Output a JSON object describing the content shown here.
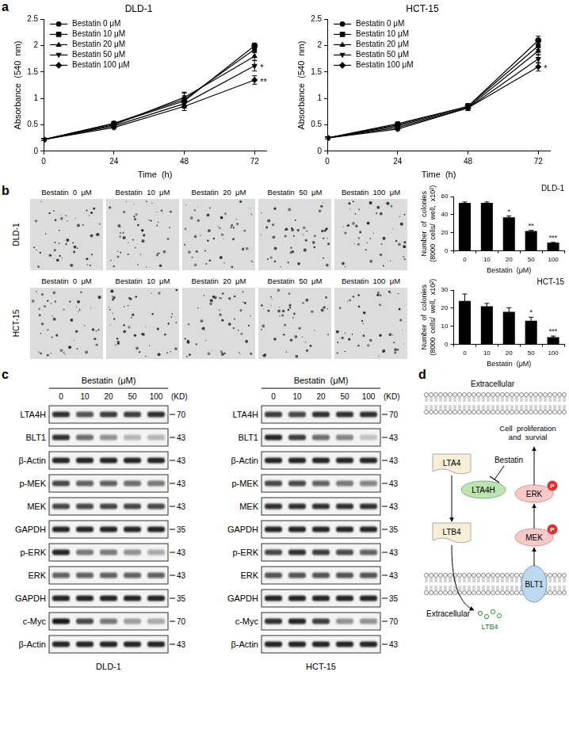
{
  "panel_labels": [
    "a",
    "b",
    "c",
    "d"
  ],
  "chart_data": [
    {
      "type": "line",
      "title": "DLD-1",
      "x_label": "Time  (h)",
      "y_label": "Absorbance  (540  nm)",
      "x": [
        0,
        24,
        48,
        72
      ],
      "xlim": [
        0,
        76
      ],
      "xticks": [
        0,
        24,
        48,
        72
      ],
      "ylim": [
        0,
        2.5
      ],
      "yticks": [
        0,
        0.5,
        1,
        1.5,
        2,
        2.5
      ],
      "grid": false,
      "legend": "upper left",
      "series": [
        {
          "name": "Bestatin 0 μM",
          "color": "#000000",
          "marker": "circle",
          "values": [
            0.22,
            0.52,
            0.95,
            2.0
          ],
          "errors": [
            0.02,
            0.03,
            0.1,
            0.05
          ],
          "significance": [
            null,
            null,
            null,
            null
          ]
        },
        {
          "name": "Bestatin 10 μM",
          "color": "#000000",
          "marker": "square",
          "values": [
            0.22,
            0.53,
            0.98,
            1.93
          ],
          "errors": [
            0.02,
            0.03,
            0.12,
            0.06
          ],
          "significance": [
            null,
            null,
            null,
            null
          ]
        },
        {
          "name": "Bestatin 20 μM",
          "color": "#000000",
          "marker": "triangle",
          "values": [
            0.22,
            0.5,
            1.02,
            1.8
          ],
          "errors": [
            0.02,
            0.03,
            0.1,
            0.08
          ],
          "significance": [
            null,
            null,
            null,
            null
          ]
        },
        {
          "name": "Bestatin 50 μM",
          "color": "#000000",
          "marker": "triangle_down",
          "values": [
            0.22,
            0.48,
            0.9,
            1.62
          ],
          "errors": [
            0.02,
            0.03,
            0.08,
            0.1
          ],
          "significance": [
            null,
            null,
            null,
            "*"
          ]
        },
        {
          "name": "Bestatin 100 μM",
          "color": "#000000",
          "marker": "diamond",
          "values": [
            0.22,
            0.45,
            0.85,
            1.35
          ],
          "errors": [
            0.02,
            0.03,
            0.08,
            0.08
          ],
          "significance": [
            null,
            null,
            null,
            "**"
          ]
        }
      ]
    },
    {
      "type": "line",
      "title": "HCT-15",
      "x_label": "Time  (h)",
      "y_label": "Absorbance  (540  nm)",
      "x": [
        0,
        24,
        48,
        72
      ],
      "xlim": [
        0,
        76
      ],
      "xticks": [
        0,
        24,
        48,
        72
      ],
      "ylim": [
        0,
        2.5
      ],
      "yticks": [
        0,
        0.5,
        1,
        1.5,
        2,
        2.5
      ],
      "grid": false,
      "legend": "upper left",
      "series": [
        {
          "name": "Bestatin 0 μM",
          "color": "#000000",
          "marker": "circle",
          "values": [
            0.25,
            0.5,
            0.85,
            2.1
          ],
          "errors": [
            0.02,
            0.03,
            0.05,
            0.08
          ],
          "significance": [
            null,
            null,
            null,
            null
          ]
        },
        {
          "name": "Bestatin 10 μM",
          "color": "#000000",
          "marker": "square",
          "values": [
            0.25,
            0.52,
            0.85,
            2.0
          ],
          "errors": [
            0.02,
            0.03,
            0.05,
            0.07
          ],
          "significance": [
            null,
            null,
            null,
            null
          ]
        },
        {
          "name": "Bestatin 20 μM",
          "color": "#000000",
          "marker": "triangle",
          "values": [
            0.25,
            0.48,
            0.83,
            1.9
          ],
          "errors": [
            0.02,
            0.03,
            0.05,
            0.07
          ],
          "significance": [
            null,
            null,
            null,
            null
          ]
        },
        {
          "name": "Bestatin 50 μM",
          "color": "#000000",
          "marker": "triangle_down",
          "values": [
            0.25,
            0.45,
            0.82,
            1.75
          ],
          "errors": [
            0.02,
            0.03,
            0.05,
            0.08
          ],
          "significance": [
            null,
            null,
            null,
            null
          ]
        },
        {
          "name": "Bestatin 100 μM",
          "color": "#000000",
          "marker": "diamond",
          "values": [
            0.25,
            0.42,
            0.82,
            1.6
          ],
          "errors": [
            0.02,
            0.03,
            0.05,
            0.08
          ],
          "significance": [
            null,
            null,
            null,
            "*"
          ]
        }
      ]
    },
    {
      "type": "bar",
      "title": "DLD-1",
      "x_label": "Bestatin  (μM)",
      "y_label": [
        "Number  of  colonies",
        "(8000  cells/  well,  x10²)"
      ],
      "categories": [
        "0",
        "10",
        "20",
        "50",
        "100"
      ],
      "values": [
        53,
        53,
        37,
        22,
        9
      ],
      "errors": [
        1,
        1,
        1.5,
        0.7,
        0.5
      ],
      "significance": [
        null,
        null,
        "*",
        "**",
        "***"
      ],
      "color": "#000000",
      "ylim": [
        0,
        60
      ],
      "yticks": [
        0,
        20,
        40,
        60
      ],
      "grid": false
    },
    {
      "type": "bar",
      "title": "HCT-15",
      "x_label": "Bestatin  (μM)",
      "y_label": [
        "Number  of  colonies",
        "(8000  cells/  well,  x10²)"
      ],
      "categories": [
        "0",
        "10",
        "20",
        "50",
        "100"
      ],
      "values": [
        24,
        21,
        18,
        13,
        4
      ],
      "errors": [
        3.8,
        1.6,
        2.2,
        2,
        0.6
      ],
      "significance": [
        null,
        null,
        null,
        "*",
        "***"
      ],
      "color": "#000000",
      "ylim": [
        0,
        30
      ],
      "yticks": [
        0,
        10,
        20,
        30
      ],
      "grid": false
    }
  ],
  "colony_images": [
    {
      "label": "DLD-1",
      "titles": [
        "Bestatin  0  μM",
        "Bestatin  10  μM",
        "Bestatin  20  μM",
        "Bestatin  50  μM",
        "Bestatin  100  μM"
      ]
    },
    {
      "label": "HCT-15",
      "titles": [
        "Bestatin  0  μM",
        "Bestatin  10  μM",
        "Bestatin  20  μM",
        "Bestatin  50  μM",
        "Bestatin  100  μM"
      ]
    }
  ],
  "western_blots": [
    {
      "cell_line": "DLD-1",
      "treatment": "Bestatin  (μM)",
      "lanes": [
        "0",
        "10",
        "20",
        "50",
        "100"
      ],
      "kd_header": "(KD)",
      "rows": [
        {
          "protein": "LTA4H",
          "kd": 70,
          "bands": [
            0.8,
            0.65,
            0.75,
            0.75,
            0.8
          ]
        },
        {
          "protein": "BLT1",
          "kd": 43,
          "bands": [
            0.8,
            0.55,
            0.4,
            0.25,
            0.25
          ]
        },
        {
          "protein": "β-Actin",
          "kd": 43,
          "bands": [
            0.85,
            0.85,
            0.85,
            0.85,
            0.85
          ]
        },
        {
          "protein": "p-MEK",
          "kd": 43,
          "bands": [
            0.7,
            0.6,
            0.6,
            0.55,
            0.5
          ]
        },
        {
          "protein": "MEK",
          "kd": 43,
          "bands": [
            0.7,
            0.7,
            0.7,
            0.7,
            0.7
          ]
        },
        {
          "protein": "GAPDH",
          "kd": 35,
          "bands": [
            0.85,
            0.85,
            0.85,
            0.85,
            0.85
          ]
        },
        {
          "protein": "p-ERK",
          "kd": 43,
          "bands": [
            0.85,
            0.5,
            0.5,
            0.4,
            0.3
          ]
        },
        {
          "protein": "ERK",
          "kd": 43,
          "bands": [
            0.6,
            0.6,
            0.6,
            0.6,
            0.6
          ]
        },
        {
          "protein": "GAPDH",
          "kd": 35,
          "bands": [
            0.85,
            0.85,
            0.85,
            0.85,
            0.85
          ]
        },
        {
          "protein": "c-Myc",
          "kd": 70,
          "bands": [
            0.9,
            0.7,
            0.5,
            0.35,
            0.3
          ]
        },
        {
          "protein": "β-Actin",
          "kd": 43,
          "bands": [
            0.85,
            0.85,
            0.85,
            0.85,
            0.85
          ]
        }
      ]
    },
    {
      "cell_line": "HCT-15",
      "treatment": "Bestatin  (μM)",
      "lanes": [
        "0",
        "10",
        "20",
        "50",
        "100"
      ],
      "kd_header": "(KD)",
      "rows": [
        {
          "protein": "LTA4H",
          "kd": 70,
          "bands": [
            0.75,
            0.7,
            0.8,
            0.8,
            0.8
          ]
        },
        {
          "protein": "BLT1",
          "kd": 43,
          "bands": [
            0.85,
            0.75,
            0.55,
            0.45,
            0.2
          ]
        },
        {
          "protein": "β-Actin",
          "kd": 43,
          "bands": [
            0.85,
            0.85,
            0.85,
            0.85,
            0.85
          ]
        },
        {
          "protein": "p-MEK",
          "kd": 43,
          "bands": [
            0.7,
            0.7,
            0.6,
            0.5,
            0.45
          ]
        },
        {
          "protein": "MEK",
          "kd": 43,
          "bands": [
            0.8,
            0.8,
            0.8,
            0.8,
            0.8
          ]
        },
        {
          "protein": "GAPDH",
          "kd": 35,
          "bands": [
            0.85,
            0.85,
            0.85,
            0.85,
            0.85
          ]
        },
        {
          "protein": "p-ERK",
          "kd": 43,
          "bands": [
            0.7,
            0.8,
            0.75,
            0.7,
            0.6
          ]
        },
        {
          "protein": "ERK",
          "kd": 43,
          "bands": [
            0.65,
            0.65,
            0.65,
            0.65,
            0.65
          ]
        },
        {
          "protein": "GAPDH",
          "kd": 35,
          "bands": [
            0.85,
            0.85,
            0.85,
            0.85,
            0.85
          ]
        },
        {
          "protein": "c-Myc",
          "kd": 70,
          "bands": [
            0.8,
            0.85,
            0.75,
            0.4,
            0.4
          ]
        },
        {
          "protein": "β-Actin",
          "kd": 43,
          "bands": [
            0.85,
            0.85,
            0.85,
            0.85,
            0.85
          ]
        }
      ]
    }
  ],
  "pathway": {
    "extracellular_top": "Extracellular",
    "extracellular_bottom": "Extracellular",
    "substrate": "LTA4",
    "enzyme": "LTA4H",
    "inhibitor": "Bestatin",
    "product": "LTB4",
    "receptor": "BLT1",
    "kinases": [
      "MEK",
      "ERK"
    ],
    "phospho": "P",
    "outcome": [
      "Cell  proliferation",
      "and  survial"
    ]
  }
}
